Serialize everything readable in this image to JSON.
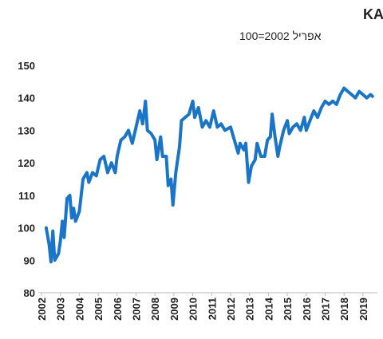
{
  "chart_data": {
    "type": "line",
    "title": "מדד אמון הצרכנים של בנק הפועלים ו-KANTAR",
    "subtitle": "אפריל 2002=100",
    "x": [
      2002.25,
      2002.4,
      2002.5,
      2002.6,
      2002.7,
      2002.9,
      2003.0,
      2003.1,
      2003.2,
      2003.35,
      2003.5,
      2003.6,
      2003.7,
      2003.8,
      2004.0,
      2004.2,
      2004.4,
      2004.5,
      2004.7,
      2004.9,
      2005.1,
      2005.3,
      2005.5,
      2005.7,
      2005.9,
      2006.0,
      2006.2,
      2006.4,
      2006.6,
      2006.8,
      2007.0,
      2007.2,
      2007.35,
      2007.5,
      2007.6,
      2007.8,
      2008.0,
      2008.1,
      2008.3,
      2008.4,
      2008.6,
      2008.7,
      2008.85,
      2008.95,
      2009.1,
      2009.3,
      2009.4,
      2009.6,
      2009.8,
      2010.0,
      2010.1,
      2010.3,
      2010.5,
      2010.7,
      2010.9,
      2011.1,
      2011.3,
      2011.5,
      2011.7,
      2012.0,
      2012.2,
      2012.4,
      2012.5,
      2012.7,
      2012.8,
      2012.95,
      2013.1,
      2013.3,
      2013.4,
      2013.6,
      2013.8,
      2013.95,
      2014.1,
      2014.2,
      2014.35,
      2014.5,
      2014.6,
      2014.8,
      2015.0,
      2015.1,
      2015.3,
      2015.5,
      2015.7,
      2015.9,
      2016.0,
      2016.2,
      2016.4,
      2016.6,
      2016.8,
      2017.0,
      2017.2,
      2017.4,
      2017.6,
      2017.8,
      2018.0,
      2018.2,
      2018.4,
      2018.6,
      2018.8,
      2019.0,
      2019.2,
      2019.4,
      2019.5
    ],
    "series": [
      {
        "color": "#1a75c8",
        "values": [
          100,
          95,
          89.5,
          99,
          90,
          92,
          96,
          102,
          97,
          109,
          110,
          103,
          106,
          102,
          105,
          115,
          117,
          114,
          117,
          116,
          121,
          122,
          117,
          120,
          117,
          122,
          127,
          128,
          130,
          126,
          131,
          136,
          132,
          139,
          130,
          129,
          127,
          121,
          128,
          122,
          122,
          113,
          115,
          107,
          117,
          125,
          133,
          134,
          135,
          139,
          134,
          137,
          131,
          133,
          131,
          136,
          131,
          132,
          130,
          131,
          127,
          123,
          126,
          124,
          126,
          114,
          119,
          121,
          126,
          122,
          122,
          127,
          128,
          135,
          128,
          122,
          125,
          130,
          133,
          129,
          131,
          132,
          130,
          134,
          130,
          133,
          136,
          134,
          137,
          139,
          138,
          139,
          138,
          141,
          143,
          142,
          141,
          140,
          142,
          141,
          140,
          141,
          140.5
        ]
      }
    ],
    "xlim": [
      2002,
      2019.6
    ],
    "xticks": [
      2002,
      2003,
      2004,
      2005,
      2006,
      2007,
      2008,
      2009,
      2010,
      2011,
      2012,
      2013,
      2014,
      2015,
      2016,
      2017,
      2018,
      2019
    ],
    "ylim": [
      80,
      150
    ],
    "yticks": [
      80,
      90,
      100,
      110,
      120,
      130,
      140,
      150
    ]
  }
}
